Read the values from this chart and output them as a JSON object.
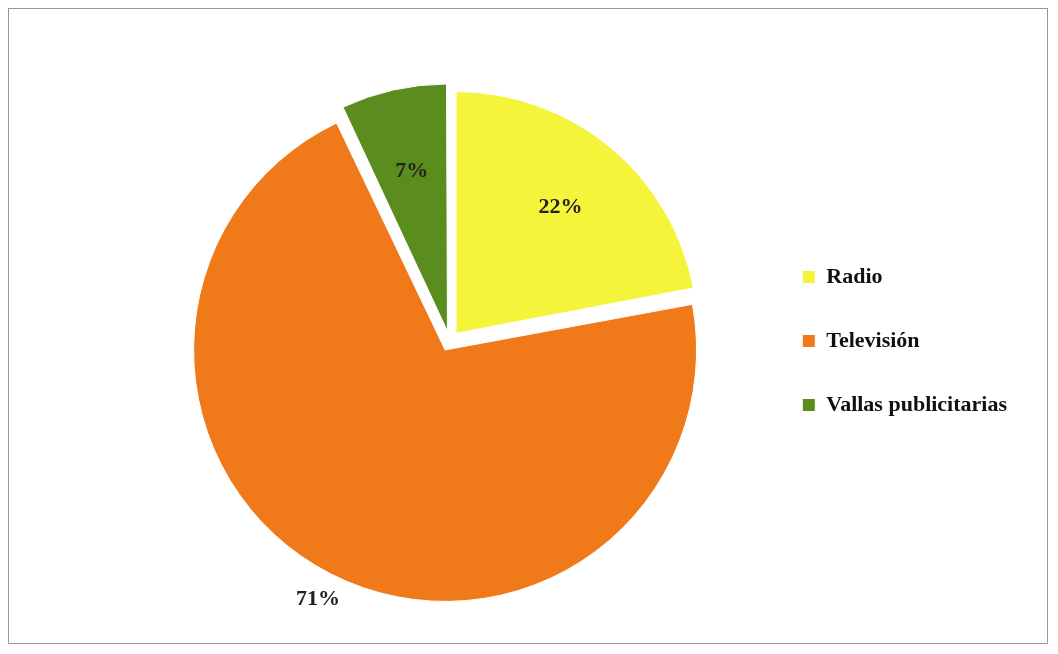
{
  "chart_data": {
    "type": "pie",
    "categories": [
      "Radio",
      "Televisión",
      "Vallas publicitarias"
    ],
    "values": [
      22,
      71,
      7
    ],
    "colors": [
      "#f4f43a",
      "#f07a1a",
      "#5b8c1e"
    ],
    "value_labels": [
      "22%",
      "71%",
      "7%"
    ],
    "legend": "right"
  }
}
